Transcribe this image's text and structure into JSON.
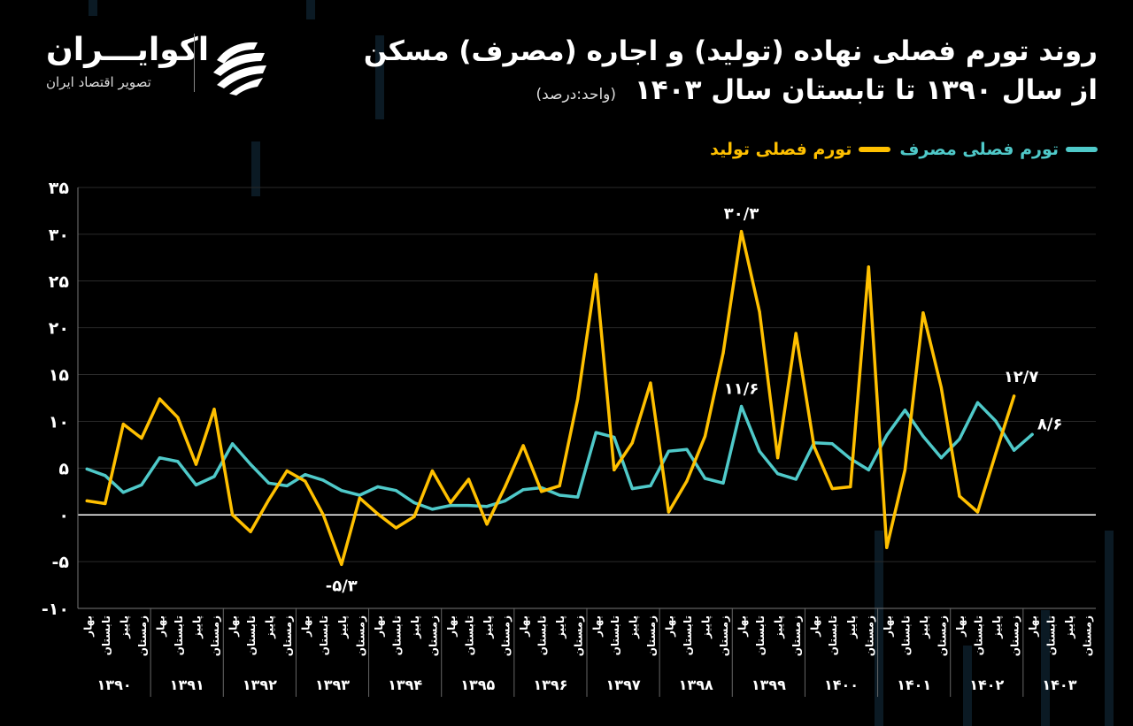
{
  "header": {
    "title_line1": "روند تورم فصلی نهاده (تولید) و اجاره (مصرف) مسکن",
    "title_line2": "از سال ۱۳۹۰ تا تابستان سال ۱۴۰۳",
    "unit": "(واحد:درصد)"
  },
  "brand": {
    "name": "اکوایـــران",
    "tagline": "تصویر اقتصاد ایران"
  },
  "colors": {
    "production": "#FFC000",
    "consumption": "#4FC9C9",
    "background": "#000000"
  },
  "chart_data": {
    "type": "line",
    "ylim": [
      -10,
      35
    ],
    "yticks": [
      "-۱۰",
      "-۵",
      "۰",
      "۵",
      "۱۰",
      "۱۵",
      "۲۰",
      "۲۵",
      "۳۰",
      "۳۵"
    ],
    "ytick_values": [
      -10,
      -5,
      0,
      5,
      10,
      15,
      20,
      25,
      30,
      35
    ],
    "season_labels": [
      "بهار",
      "تابستان",
      "پاییز",
      "زمستان"
    ],
    "years": [
      "۱۳۹۰",
      "۱۳۹۱",
      "۱۳۹۲",
      "۱۳۹۳",
      "۱۳۹۴",
      "۱۳۹۵",
      "۱۳۹۶",
      "۱۳۹۷",
      "۱۳۹۸",
      "۱۳۹۹",
      "۱۴۰۰",
      "۱۴۰۱",
      "۱۴۰۲",
      "۱۴۰۳"
    ],
    "legend_position": "top-right",
    "series": [
      {
        "name": "تورم فصلی مصرف",
        "key": "consumption",
        "values": [
          4.9,
          4.2,
          2.4,
          3.2,
          6.1,
          5.7,
          3.2,
          4.1,
          7.6,
          5.4,
          3.4,
          3.1,
          4.3,
          3.7,
          2.6,
          2.1,
          3.0,
          2.6,
          1.3,
          0.6,
          1.0,
          1.0,
          0.9,
          1.5,
          2.7,
          2.9,
          2.1,
          1.9,
          8.8,
          8.3,
          2.8,
          3.1,
          6.8,
          7.0,
          3.9,
          3.4,
          11.6,
          6.8,
          4.4,
          3.8,
          7.7,
          7.6,
          6.0,
          4.8,
          8.5,
          11.2,
          8.4,
          6.1,
          8.1,
          12.0,
          10.0,
          6.9,
          8.6
        ]
      },
      {
        "name": "تورم فصلی تولید",
        "key": "production",
        "values": [
          1.5,
          1.2,
          9.7,
          8.2,
          12.4,
          10.4,
          5.4,
          11.3,
          0.0,
          -1.8,
          1.6,
          4.7,
          3.6,
          0.0,
          -5.3,
          1.8,
          0.1,
          -1.4,
          -0.2,
          4.7,
          1.3,
          3.8,
          -1.0,
          3.0,
          7.4,
          2.5,
          3.1,
          12.4,
          25.7,
          4.8,
          7.7,
          14.1,
          0.3,
          3.6,
          8.4,
          17.3,
          30.3,
          21.7,
          6.1,
          19.4,
          7.3,
          2.8,
          3.0,
          26.5,
          -3.5,
          4.8,
          21.6,
          13.6,
          2.0,
          0.3,
          6.6,
          12.7
        ]
      }
    ],
    "annotations": [
      {
        "series": "production",
        "index": 36,
        "label": "۳۰/۳"
      },
      {
        "series": "production",
        "index": 14,
        "label": "-۵/۳"
      },
      {
        "series": "consumption",
        "index": 36,
        "label": "۱۱/۶"
      },
      {
        "series": "production",
        "index": 51,
        "label": "۱۲/۷"
      },
      {
        "series": "consumption",
        "index": 52,
        "label": "۸/۶"
      }
    ]
  }
}
